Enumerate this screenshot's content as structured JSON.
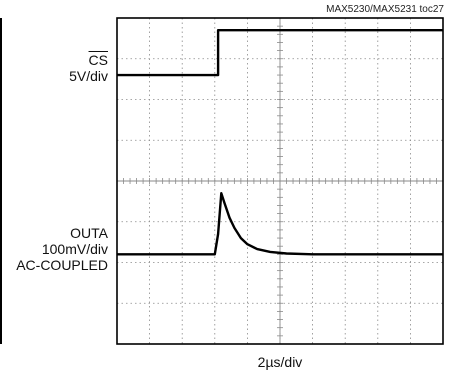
{
  "chart_data": {
    "type": "line",
    "figure_id": "MAX5230/MAX5231 toc27",
    "channel1": {
      "name": "CS",
      "scale": "5V/div"
    },
    "channel2": {
      "name": "OUTA",
      "scale": "100mV/div",
      "coupling": "AC-COUPLED"
    },
    "xlabel": "2µs/div",
    "grid": true,
    "divisions": {
      "x": 10,
      "y": 8
    },
    "xlim": [
      0,
      10
    ],
    "ylim": [
      0,
      8
    ],
    "series": [
      {
        "name": "CS",
        "x": [
          0,
          3.1,
          3.1,
          10
        ],
        "y": [
          6.6,
          6.6,
          7.7,
          7.7
        ]
      },
      {
        "name": "OUTA",
        "x": [
          0,
          3.0,
          3.1,
          3.2,
          3.3,
          3.45,
          3.6,
          3.8,
          4.0,
          4.3,
          4.7,
          5.2,
          6.0,
          10
        ],
        "y": [
          2.2,
          2.2,
          2.7,
          3.7,
          3.45,
          3.1,
          2.85,
          2.6,
          2.45,
          2.33,
          2.26,
          2.22,
          2.2,
          2.2
        ]
      }
    ]
  }
}
